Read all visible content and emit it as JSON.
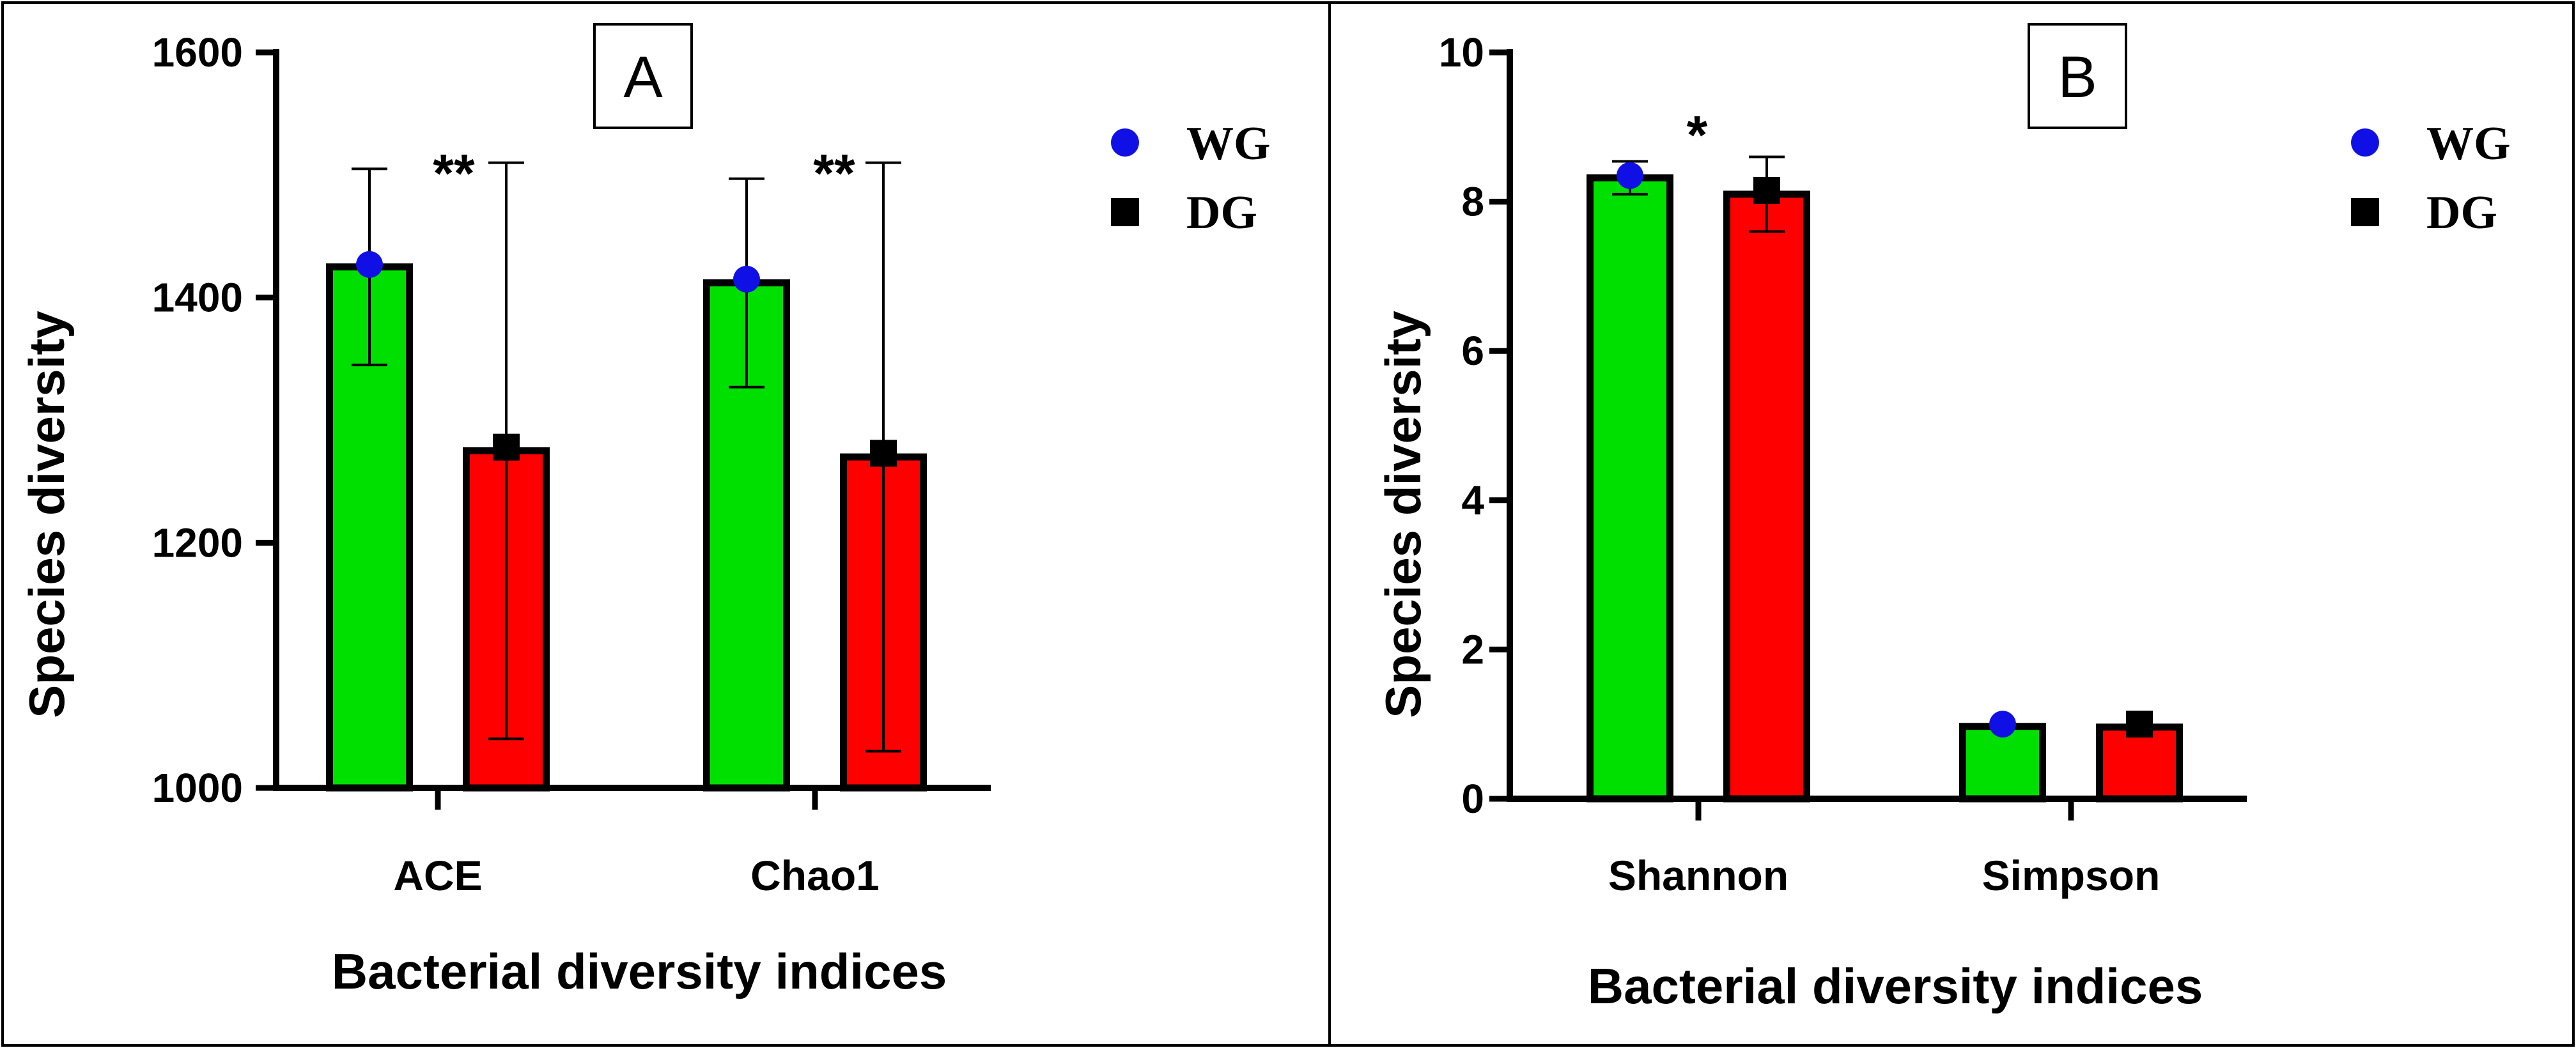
{
  "chart_data": [
    {
      "type": "bar",
      "panel_label": "A",
      "title": "",
      "xlabel": "Bacterial diversity indices",
      "ylabel": "Species diversity",
      "ylim": [
        1000,
        1600
      ],
      "yticks": [
        1000,
        1200,
        1400,
        1600
      ],
      "categories": [
        "ACE",
        "Chao1"
      ],
      "series": [
        {
          "name": "WG",
          "color": "#00E000",
          "marker": "circle",
          "marker_color": "#1010E6",
          "values": [
            1425,
            1412
          ],
          "error": [
            80,
            85
          ],
          "marker_values": [
            1427,
            1415
          ]
        },
        {
          "name": "DG",
          "color": "#FF0000",
          "marker": "square",
          "marker_color": "#000000",
          "values": [
            1275,
            1270
          ],
          "error": [
            235,
            240
          ],
          "marker_values": [
            1278,
            1273
          ]
        }
      ],
      "significance": [
        "**",
        "**"
      ],
      "legend_position": "top-right"
    },
    {
      "type": "bar",
      "panel_label": "B",
      "title": "",
      "xlabel": "Bacterial diversity indices",
      "ylabel": "Species diversity",
      "ylim": [
        0,
        10
      ],
      "yticks": [
        0,
        2,
        4,
        6,
        8,
        10
      ],
      "categories": [
        "Shannon",
        "Simpson"
      ],
      "series": [
        {
          "name": "WG",
          "color": "#00E000",
          "marker": "circle",
          "marker_color": "#1010E6",
          "values": [
            8.32,
            0.97
          ],
          "error": [
            0.22,
            0
          ],
          "marker_values": [
            8.35,
            1.0
          ]
        },
        {
          "name": "DG",
          "color": "#FF0000",
          "marker": "square",
          "marker_color": "#000000",
          "values": [
            8.1,
            0.96
          ],
          "error": [
            0.5,
            0
          ],
          "marker_values": [
            8.15,
            1.0
          ]
        }
      ],
      "significance": [
        "*",
        ""
      ],
      "legend_position": "top-right"
    }
  ]
}
